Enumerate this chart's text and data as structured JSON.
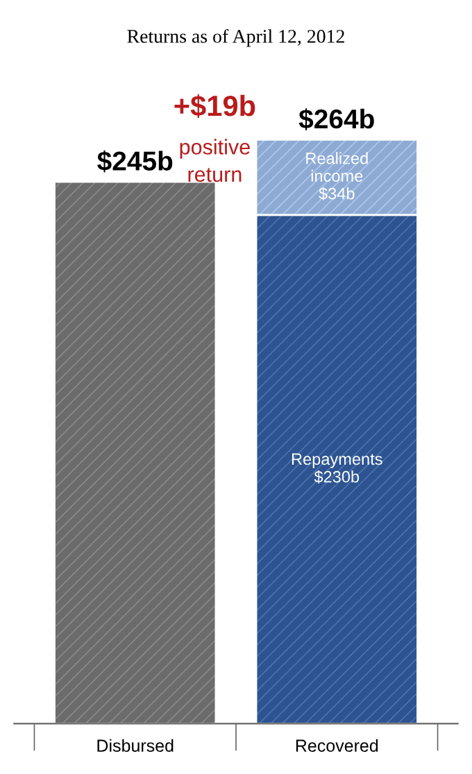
{
  "chart_data": {
    "type": "bar",
    "title": "Returns as of April 12, 2012",
    "stacked": true,
    "categories": [
      "Disbursed",
      "Recovered"
    ],
    "series": [
      {
        "color": "#6b6b6b",
        "values": [
          245,
          null
        ]
      },
      {
        "name": "Repayments",
        "color": "#2d5490",
        "values": [
          null,
          230
        ],
        "value_labels": [
          null,
          "$230b"
        ]
      },
      {
        "name": "Realized\nincome",
        "color": "#8eaad3",
        "values": [
          null,
          34
        ],
        "value_labels": [
          null,
          "$34b"
        ]
      }
    ],
    "totals": [
      "$245b",
      "$264b"
    ],
    "annotations": [
      "+$19b",
      "positive\nreturn"
    ],
    "grid": false,
    "legend": false
  }
}
